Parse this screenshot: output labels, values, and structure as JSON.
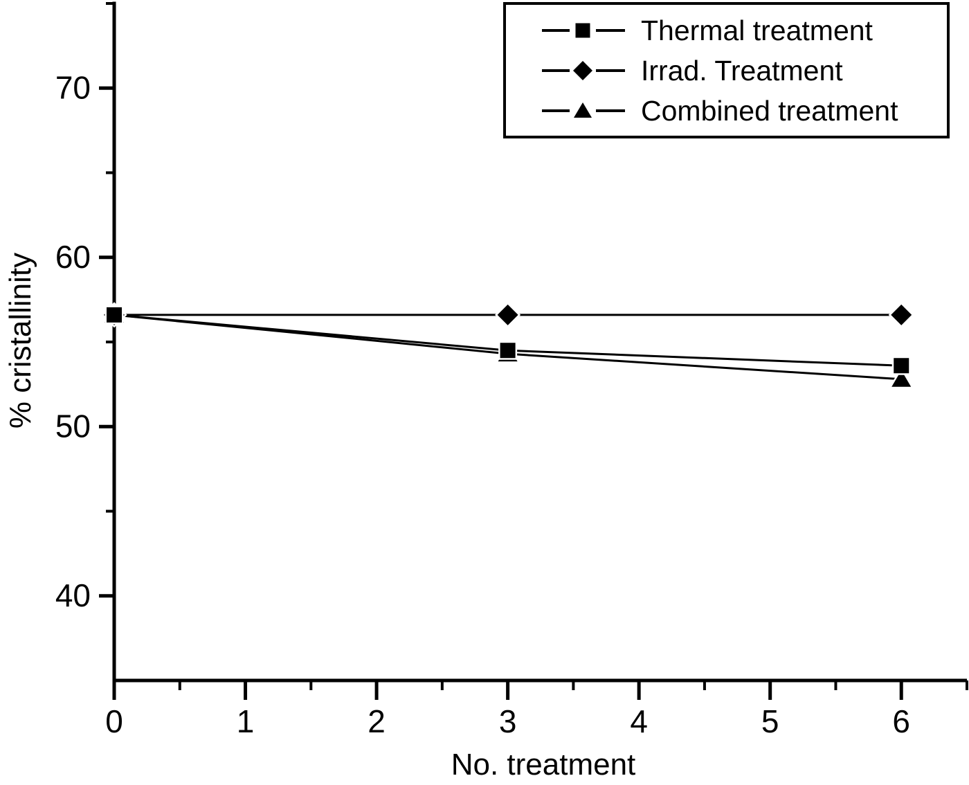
{
  "figure": {
    "background_color": "#ffffff",
    "ink_color": "#000000"
  },
  "chart_data": {
    "type": "line",
    "x": [
      0,
      3,
      6
    ],
    "series": [
      {
        "name": "Thermal treatment",
        "marker": "square",
        "values": [
          56.6,
          54.5,
          53.6
        ]
      },
      {
        "name": "Irrad. Treatment",
        "marker": "diamond",
        "values": [
          56.6,
          56.6,
          56.6
        ]
      },
      {
        "name": "Combined treatment",
        "marker": "triangle",
        "values": [
          56.6,
          54.3,
          52.8
        ]
      }
    ],
    "xlabel": "No. treatment",
    "ylabel": "% cristallinity",
    "xlim": [
      0,
      6.5
    ],
    "ylim": [
      35,
      75
    ],
    "x_major_ticks": [
      0,
      1,
      2,
      3,
      4,
      5,
      6
    ],
    "x_minor_ticks": [
      0.5,
      1.5,
      2.5,
      3.5,
      4.5,
      5.5,
      6.5
    ],
    "y_major_ticks": [
      40,
      50,
      60,
      70
    ],
    "y_minor_ticks": [
      45,
      55,
      65,
      75
    ],
    "grid": false,
    "legend_position": "top-right",
    "line_color": "#000000",
    "marker_color": "#000000"
  }
}
